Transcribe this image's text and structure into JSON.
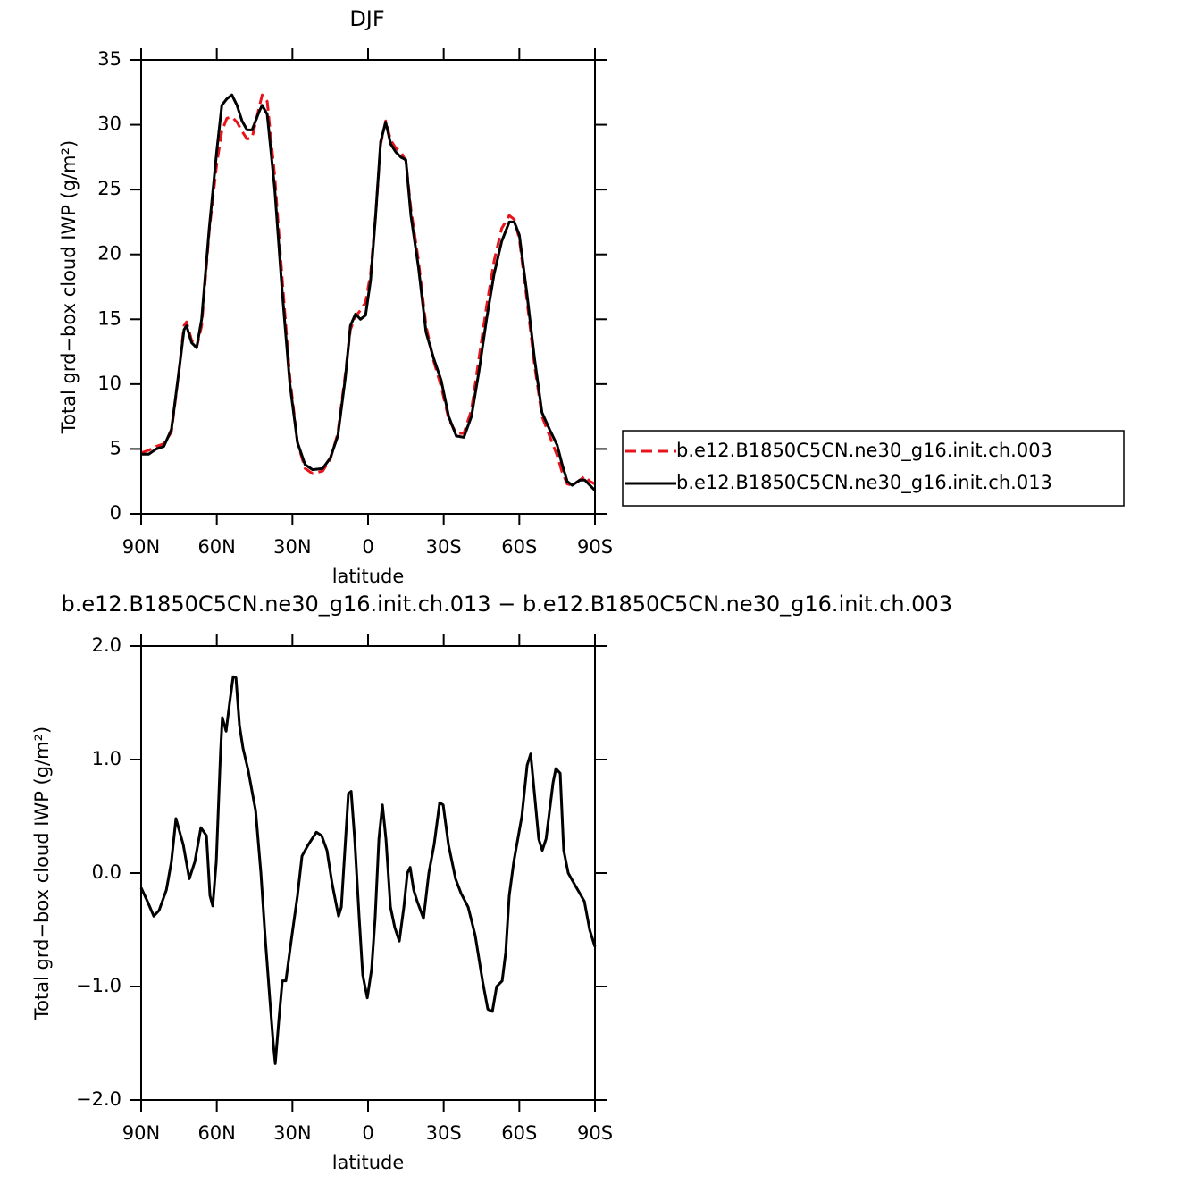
{
  "chart_data": [
    {
      "type": "line",
      "title": "DJF",
      "x_label": "latitude",
      "y_label": "Total grd−box cloud IWP (g/m²)",
      "x": [
        90,
        87,
        84,
        81,
        78,
        75,
        73,
        72,
        70,
        68,
        66,
        63,
        60,
        58,
        56,
        54,
        52,
        50,
        48,
        46,
        43,
        42,
        40,
        37,
        34,
        31,
        28,
        25,
        22,
        18,
        15,
        12,
        9,
        7,
        5,
        3,
        1,
        -1,
        -3,
        -5,
        -7,
        -9,
        -11,
        -13,
        -15,
        -17,
        -20,
        -23,
        -26,
        -29,
        -32,
        -35,
        -38,
        -41,
        -44,
        -47,
        -50,
        -53,
        -56,
        -58,
        -60,
        -63,
        -66,
        -69,
        -72,
        -75,
        -77,
        -79,
        -81,
        -84,
        -86,
        -88,
        -90
      ],
      "series": [
        {
          "name": "b.e12.B1850C5CN.ne30_g16.init.ch.003",
          "color": "#e8141c",
          "linestyle": "dashed",
          "values": [
            4.7,
            4.9,
            5.2,
            5.4,
            6.3,
            11,
            14.5,
            14.8,
            13.4,
            12.8,
            14.5,
            21.8,
            27,
            29.5,
            30.5,
            30.6,
            30.2,
            29.5,
            28.9,
            29.0,
            31.5,
            32.3,
            31.8,
            26,
            18,
            10.5,
            5.5,
            3.5,
            3.1,
            3.3,
            4.2,
            6.2,
            10.8,
            14.2,
            15.2,
            15.7,
            16.3,
            18.5,
            23,
            28.5,
            30.3,
            28.8,
            28.2,
            27.9,
            27.2,
            23.5,
            19.5,
            14.5,
            11.8,
            9.8,
            7.3,
            6.2,
            6.2,
            8,
            12,
            16,
            19.5,
            22,
            23,
            22.7,
            21.2,
            16.5,
            11.5,
            7.5,
            6,
            4.5,
            3.2,
            2.3,
            2.2,
            2.6,
            2.9,
            2.5,
            2.3
          ]
        },
        {
          "name": "b.e12.B1850C5CN.ne30_g16.init.ch.013",
          "color": "#000000",
          "linestyle": "solid",
          "values": [
            4.6,
            4.6,
            5.0,
            5.2,
            6.5,
            11,
            14.2,
            14.5,
            13.2,
            12.8,
            15,
            22,
            28,
            31.5,
            32.0,
            32.3,
            31.5,
            30.3,
            29.6,
            29.6,
            31.1,
            31.5,
            30.8,
            25,
            17,
            10,
            5.5,
            3.8,
            3.4,
            3.5,
            4.3,
            6,
            10.5,
            14.5,
            15.4,
            15,
            15.3,
            18,
            23,
            28.7,
            30.2,
            28.5,
            27.9,
            27.5,
            27.3,
            23,
            19,
            14,
            12,
            10.3,
            7.5,
            6.0,
            5.9,
            7.5,
            11,
            15,
            18.5,
            21,
            22.5,
            22.5,
            21.5,
            17,
            12,
            7.8,
            6.5,
            5.3,
            3.8,
            2.5,
            2.2,
            2.6,
            2.6,
            2.2,
            1.8
          ]
        }
      ],
      "xlim": [
        90,
        -90
      ],
      "xticks": [
        {
          "value": 90,
          "label": "90N"
        },
        {
          "value": 60,
          "label": "60N"
        },
        {
          "value": 30,
          "label": "30N"
        },
        0,
        {
          "value": -30,
          "label": "30S"
        },
        {
          "value": -60,
          "label": "60S"
        },
        {
          "value": -90,
          "label": "90S"
        }
      ],
      "ylim": [
        0,
        35
      ],
      "yticks": [
        0,
        5,
        10,
        15,
        20,
        25,
        30,
        35
      ],
      "legend": "right",
      "grid": false
    },
    {
      "type": "line",
      "title": "b.e12.B1850C5CN.ne30_g16.init.ch.013 − b.e12.B1850C5CN.ne30_g16.init.ch.003",
      "x_label": "latitude",
      "y_label": "Total grd−box cloud IWP (g/m²)",
      "x": [
        90,
        87.5,
        85,
        82.9,
        80,
        78,
        76.2,
        73.3,
        70.9,
        68.7,
        66.3,
        64.1,
        62.7,
        61.6,
        60.2,
        58.5,
        57.8,
        56.3,
        54.9,
        53.5,
        52.4,
        51,
        49.6,
        47.5,
        44.6,
        42.5,
        40.7,
        39,
        37.6,
        36.8,
        35.4,
        34,
        32.6,
        30.5,
        28,
        26.2,
        23.7,
        20.5,
        18.4,
        16.3,
        14.2,
        11.7,
        10.6,
        9.2,
        7.8,
        6.7,
        5.3,
        3.5,
        2.1,
        0.3,
        -1.4,
        -2.8,
        -4.3,
        -5.7,
        -7.1,
        -8.9,
        -10.6,
        -12.4,
        -14.2,
        -15.6,
        -16.7,
        -18.1,
        -19.5,
        -22,
        -24.1,
        -26.2,
        -28.4,
        -29.8,
        -31.9,
        -34.7,
        -36.9,
        -39.7,
        -42.5,
        -45.4,
        -47.5,
        -49.3,
        -51,
        -53.2,
        -54.6,
        -56,
        -57.8,
        -61,
        -63.1,
        -64.5,
        -66,
        -67.7,
        -69.1,
        -70.6,
        -73.4,
        -74.5,
        -76.2,
        -77.6,
        -79.4,
        -81.9,
        -84,
        -85.8,
        -87.9,
        -90
      ],
      "values": [
        -0.13,
        -0.25,
        -0.38,
        -0.33,
        -0.15,
        0.1,
        0.48,
        0.25,
        -0.05,
        0.1,
        0.4,
        0.33,
        -0.2,
        -0.29,
        0.1,
        1.07,
        1.37,
        1.25,
        1.5,
        1.73,
        1.72,
        1.3,
        1.1,
        0.9,
        0.55,
        0.0,
        -0.6,
        -1.1,
        -1.5,
        -1.68,
        -1.3,
        -0.95,
        -0.95,
        -0.6,
        -0.2,
        0.15,
        0.25,
        0.36,
        0.33,
        0.2,
        -0.1,
        -0.38,
        -0.3,
        0.2,
        0.7,
        0.72,
        0.3,
        -0.4,
        -0.9,
        -1.1,
        -0.85,
        -0.4,
        0.3,
        0.6,
        0.3,
        -0.3,
        -0.48,
        -0.6,
        -0.3,
        0.0,
        0.05,
        -0.15,
        -0.25,
        -0.4,
        0.0,
        0.25,
        0.62,
        0.6,
        0.25,
        -0.05,
        -0.18,
        -0.3,
        -0.55,
        -0.95,
        -1.2,
        -1.22,
        -1.0,
        -0.95,
        -0.7,
        -0.2,
        0.1,
        0.5,
        0.95,
        1.05,
        0.7,
        0.3,
        0.2,
        0.3,
        0.8,
        0.92,
        0.88,
        0.2,
        0.0,
        -0.1,
        -0.18,
        -0.25,
        -0.5,
        -0.65
      ],
      "color": "#000000",
      "xlim": [
        90,
        -90
      ],
      "xticks": [
        {
          "value": 90,
          "label": "90N"
        },
        {
          "value": 60,
          "label": "60N"
        },
        {
          "value": 30,
          "label": "30N"
        },
        0,
        {
          "value": -30,
          "label": "30S"
        },
        {
          "value": -60,
          "label": "60S"
        },
        {
          "value": -90,
          "label": "90S"
        }
      ],
      "ylim": [
        -2.0,
        2.0
      ],
      "yticks": [
        {
          "value": -2.0,
          "label": "−2.0"
        },
        {
          "value": -1.0,
          "label": "−1.0"
        },
        {
          "value": 0.0,
          "label": "0.0"
        },
        {
          "value": 1.0,
          "label": "1.0"
        },
        {
          "value": 2.0,
          "label": "2.0"
        }
      ],
      "grid": false
    }
  ]
}
